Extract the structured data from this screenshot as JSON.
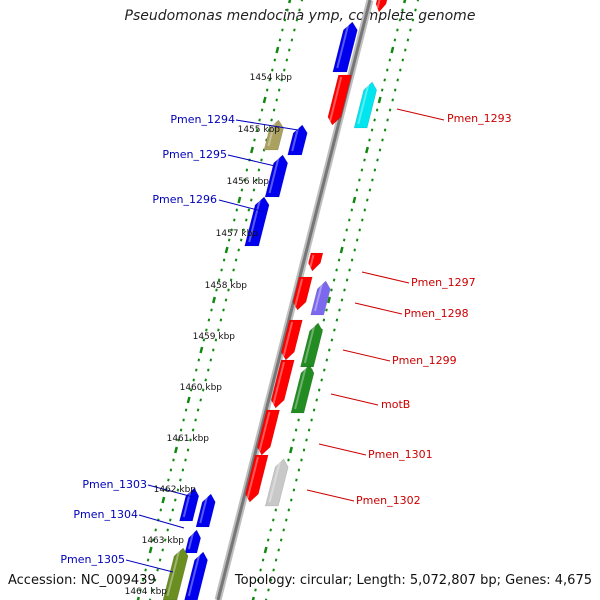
{
  "title": "Pseudomonas mendocina ymp, complete genome",
  "accession": "Accession: NC_009439",
  "summary": "Topology: circular; Length: 5,072,807 bp; Genes: 4,675",
  "colors": {
    "forward_cds": "#ff0000",
    "reverse_cds": "#0000ee",
    "label_forward": "#cc0000",
    "label_reverse": "#0000bb",
    "tick": "#118811",
    "backbone": "#888888",
    "cyan": "#00e5ee",
    "green": "#228b22",
    "olive": "#aaa060",
    "olive_green": "#6b8e23",
    "slate": "#7b68ee",
    "gray": "#c8c8c8",
    "lavender": "#b0a8e8"
  },
  "kbp_labels": [
    "1454 kbp",
    "1455 kbp",
    "1456 kbp",
    "1457 kbp",
    "1458 kbp",
    "1459 kbp",
    "1460 kbp",
    "1461 kbp",
    "1462 kbp",
    "1463 kbp",
    "1464 kbp"
  ],
  "genes_left": [
    "Pmen_1294",
    "Pmen_1295",
    "Pmen_1296",
    "Pmen_1303",
    "Pmen_1304",
    "Pmen_1305"
  ],
  "genes_right": [
    "Pmen_1293",
    "Pmen_1297",
    "Pmen_1298",
    "Pmen_1299",
    "motB",
    "Pmen_1301",
    "Pmen_1302"
  ]
}
